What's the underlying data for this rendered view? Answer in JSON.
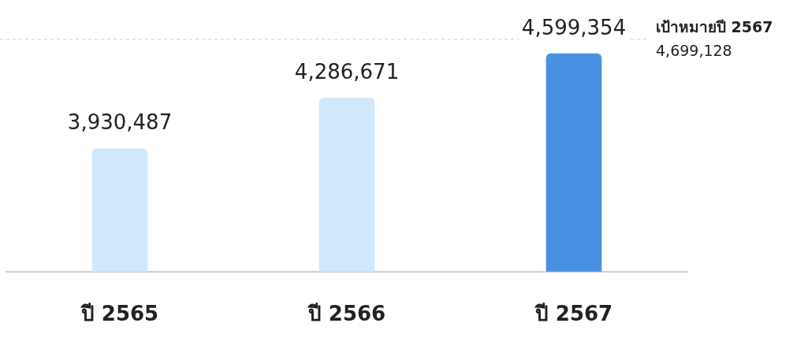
{
  "chart_data": {
    "type": "bar",
    "categories": [
      "ปี 2565",
      "ปี 2566",
      "ปี 2567"
    ],
    "values": [
      3930487,
      4286671,
      4599354
    ],
    "colors": [
      "#d0e8fb",
      "#d0e8fb",
      "#4a90e2"
    ],
    "value_labels": [
      "3,930,487",
      "4,286,671",
      "4,599,354"
    ],
    "tick_labels": "x",
    "grid": false,
    "legend": false,
    "ref_lines": [
      {
        "axis": "y",
        "value": 4699128,
        "label": "เป้าหมายปี 2567\n4,699,128",
        "color": "#cccccc",
        "line_style": "dashed"
      }
    ]
  }
}
